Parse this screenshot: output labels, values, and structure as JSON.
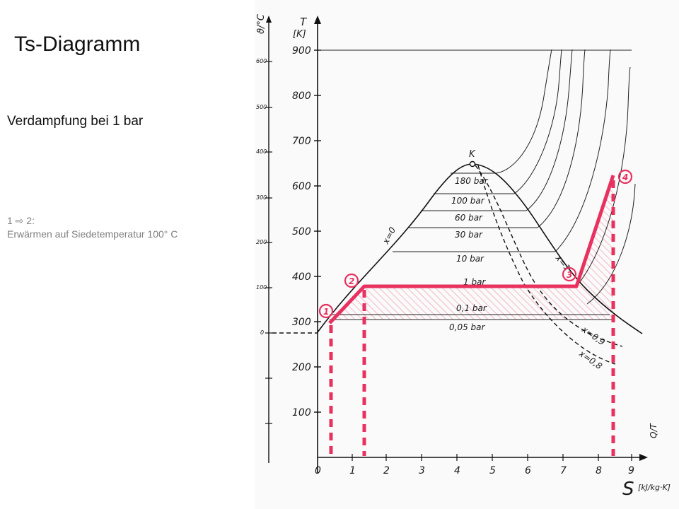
{
  "slide": {
    "title": "Ts-Diagramm",
    "subtitle": "Verdampfung bei 1 bar",
    "step_label": "1 ⇨ 2:",
    "step_desc": "Erwärmen auf Siedetemperatur 100° C"
  },
  "diagram": {
    "y_axis_symbol": "T",
    "y_axis_unit": "[K]",
    "left_axis_symbol": "ϑ/°C",
    "x_axis_symbol": "S",
    "x_axis_unit": "[kJ/kg·K]",
    "x_axis_top_symbol": "Q/T",
    "critical_point_label": "K",
    "t_ticks": [
      "900",
      "800",
      "700",
      "600",
      "500",
      "400",
      "300",
      "200",
      "100"
    ],
    "c_ticks": [
      "600",
      "500",
      "400",
      "300",
      "200",
      "100",
      "0"
    ],
    "s_ticks": [
      "0",
      "1",
      "2",
      "3",
      "4",
      "5",
      "6",
      "7",
      "8",
      "9"
    ],
    "pressure_labels": [
      "180 bar",
      "100 bar",
      "60 bar",
      "30 bar",
      "10 bar",
      "1 bar",
      "0,1 bar",
      "0,05 bar"
    ],
    "quality_labels": [
      "x=0",
      "x=1",
      "x=0,9",
      "x=0,8"
    ],
    "points": [
      "1",
      "2",
      "3",
      "4"
    ],
    "highlight_color": "#e8315f"
  }
}
